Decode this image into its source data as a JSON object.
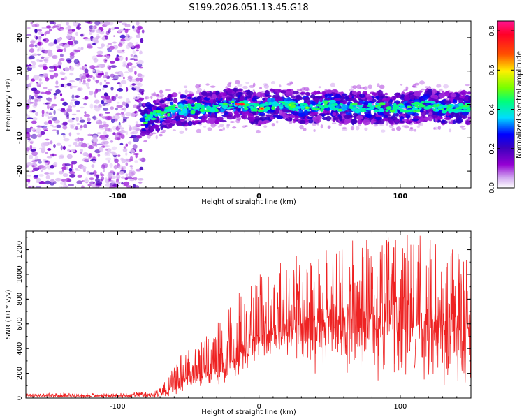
{
  "title": "S199.2026.051.13.45.G18",
  "chart_data": [
    {
      "type": "heatmap",
      "name": "spectrogram",
      "xlabel": "Height of straight line (km)",
      "ylabel": "Frequency (Hz)",
      "xlim": [
        -165,
        150
      ],
      "ylim": [
        -25,
        25
      ],
      "xticks": [
        -100,
        0,
        100
      ],
      "yticks": [
        -20,
        -10,
        0,
        10,
        20
      ],
      "colorbar": {
        "label": "Normalized spectral amplitude",
        "range": [
          0,
          0.85
        ],
        "ticks": [
          0.0,
          0.2,
          0.4,
          0.6,
          0.8
        ],
        "tick_labels": [
          "0.0",
          "0.2",
          "0.4",
          "0.6",
          "0.8"
        ],
        "colors": [
          "#ffffff",
          "#9400d3",
          "#4b0082",
          "#0000ff",
          "#00ffff",
          "#00ff00",
          "#ffff00",
          "#ff7f00",
          "#ff0000",
          "#ff1493"
        ]
      },
      "noise_region": {
        "x": [
          -165,
          -82
        ],
        "y": [
          -25,
          25
        ]
      },
      "signal_track": {
        "x": [
          -82,
          -75,
          -70,
          -60,
          -50,
          -40,
          -30,
          -20,
          -10,
          0,
          10,
          20,
          30,
          40,
          50,
          60,
          70,
          80,
          90,
          100,
          110,
          120,
          130,
          140,
          150
        ],
        "center_freq": [
          -4.5,
          -3.5,
          -3,
          -1.5,
          -1.5,
          -1,
          -1,
          0,
          0,
          -1.5,
          0,
          0,
          -1,
          -1,
          0,
          -1,
          -1,
          -1,
          -1,
          -1,
          -1,
          0,
          -1,
          -1,
          -1
        ],
        "peak_x": [
          -15,
          -12,
          2,
          22,
          34
        ],
        "peak_amplitude": [
          0.85,
          0.8,
          0.75,
          0.55,
          0.55
        ]
      }
    },
    {
      "type": "line",
      "name": "snr",
      "xlabel": "Height of straight line (km)",
      "ylabel": "SNR (10 * v/v)",
      "xlim": [
        -165,
        150
      ],
      "ylim": [
        0,
        1350
      ],
      "xticks": [
        -100,
        0,
        100
      ],
      "yticks": [
        0,
        200,
        400,
        600,
        800,
        1000,
        1200
      ],
      "color": "#ee2222",
      "envelope": {
        "x": [
          -165,
          -100,
          -75,
          -65,
          -55,
          -45,
          -35,
          -25,
          -15,
          -5,
          5,
          15,
          25,
          35,
          50,
          70,
          90,
          110,
          130,
          150
        ],
        "low": [
          0,
          0,
          0,
          10,
          40,
          60,
          80,
          100,
          150,
          250,
          300,
          280,
          250,
          200,
          150,
          120,
          100,
          80,
          60,
          50
        ],
        "mid": [
          20,
          20,
          25,
          60,
          150,
          180,
          220,
          280,
          380,
          480,
          520,
          560,
          600,
          640,
          650,
          620,
          620,
          600,
          580,
          560
        ],
        "high": [
          40,
          40,
          50,
          150,
          380,
          430,
          520,
          680,
          860,
          950,
          1050,
          1100,
          1150,
          1200,
          1250,
          1280,
          1300,
          1330,
          1250,
          1200
        ]
      }
    }
  ]
}
